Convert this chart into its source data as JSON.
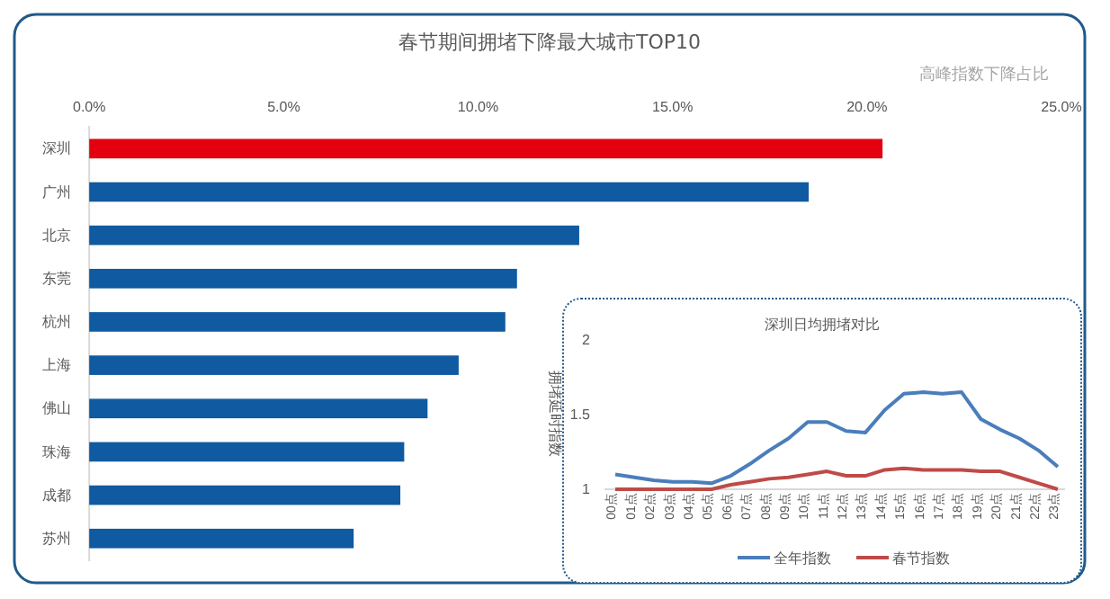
{
  "chart_data": [
    {
      "type": "bar",
      "orientation": "horizontal",
      "title": "春节期间拥堵下降最大城市TOP10",
      "xlabel": "高峰指数下降占比",
      "categories": [
        "深圳",
        "广州",
        "北京",
        "东莞",
        "杭州",
        "上海",
        "佛山",
        "珠海",
        "成都",
        "苏州"
      ],
      "values": [
        20.4,
        18.5,
        12.6,
        11.0,
        10.7,
        9.5,
        8.7,
        8.1,
        8.0,
        6.8
      ],
      "colors": [
        "#e3000f",
        "#0f5aa0",
        "#0f5aa0",
        "#0f5aa0",
        "#0f5aa0",
        "#0f5aa0",
        "#0f5aa0",
        "#0f5aa0",
        "#0f5aa0",
        "#0f5aa0"
      ],
      "xlim": [
        0,
        25
      ],
      "xticks": [
        {
          "value": 0,
          "label": "0.0%"
        },
        {
          "value": 5,
          "label": "5.0%"
        },
        {
          "value": 10,
          "label": "10.0%"
        },
        {
          "value": 15,
          "label": "15.0%"
        },
        {
          "value": 20,
          "label": "20.0%"
        },
        {
          "value": 25,
          "label": "25.0%"
        }
      ],
      "grid": false
    },
    {
      "type": "line",
      "title": "深圳日均拥堵对比",
      "ylabel": "拥堵延时指数",
      "categories": [
        "00点",
        "01点",
        "02点",
        "03点",
        "04点",
        "05点",
        "06点",
        "07点",
        "08点",
        "09点",
        "10点",
        "11点",
        "12点",
        "13点",
        "14点",
        "15点",
        "16点",
        "17点",
        "18点",
        "19点",
        "20点",
        "21点",
        "22点",
        "23点"
      ],
      "series": [
        {
          "name": "全年指数",
          "color": "#4a7ebb",
          "values": [
            1.1,
            1.08,
            1.06,
            1.05,
            1.05,
            1.04,
            1.09,
            1.17,
            1.26,
            1.34,
            1.45,
            1.45,
            1.39,
            1.38,
            1.53,
            1.64,
            1.65,
            1.64,
            1.65,
            1.47,
            1.4,
            1.34,
            1.26,
            1.15
          ]
        },
        {
          "name": "春节指数",
          "color": "#be4b48",
          "values": [
            1.0,
            1.0,
            1.0,
            1.0,
            1.0,
            1.0,
            1.03,
            1.05,
            1.07,
            1.08,
            1.1,
            1.12,
            1.09,
            1.09,
            1.13,
            1.14,
            1.13,
            1.13,
            1.13,
            1.12,
            1.12,
            1.08,
            1.04,
            1.0
          ]
        }
      ],
      "ylim": [
        1,
        2
      ],
      "yticks": [
        1,
        1.5,
        2
      ],
      "grid": false,
      "legend": "bottom",
      "marker": "none",
      "line_style": "solid"
    }
  ]
}
